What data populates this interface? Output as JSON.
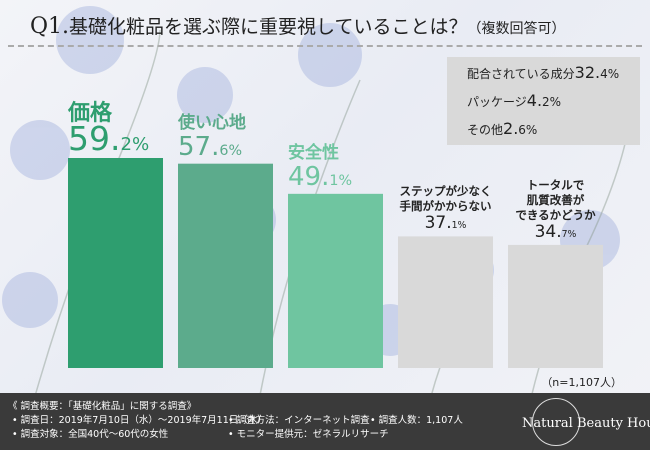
{
  "title": {
    "q": "Q1.",
    "main": "基礎化粧品を選ぶ際に重要視していることは？",
    "sub": "（複数回答可）"
  },
  "others": [
    {
      "label": "配合されている成分",
      "num": "32.",
      "frac": "4",
      "pct": "%"
    },
    {
      "label": "パッケージ",
      "num": "4.",
      "frac": "2",
      "pct": "%"
    },
    {
      "label": "その他",
      "num": "2.",
      "frac": "6",
      "pct": "%"
    }
  ],
  "chart_data": {
    "type": "bar",
    "categories": [
      "価格",
      "使い心地",
      "安全性",
      "ステップが少なく手間がかからない",
      "トータルで肌質改善ができるかどうか"
    ],
    "values": [
      59.2,
      57.6,
      49.1,
      37.1,
      34.7
    ],
    "unit": "%",
    "ylim": [
      0,
      65
    ],
    "grid": false,
    "colors": [
      "#2e9e6f",
      "#5cab8c",
      "#6fc5a0",
      "#d9d9d9",
      "#d9d9d9"
    ],
    "value_label_colors": [
      "#2e9e6f",
      "#5cab8c",
      "#6fc5a0",
      "#222222",
      "#222222"
    ],
    "label_lines": [
      [
        "価格"
      ],
      [
        "使い心地"
      ],
      [
        "安全性"
      ],
      [
        "ステップが少なく",
        "手間がかからない"
      ],
      [
        "トータルで",
        "肌質改善が",
        "できるかどうか"
      ]
    ]
  },
  "note": "（n=1,107人）",
  "footer": {
    "heading": "《 調査概要：「基礎化粧品」に関する調査》",
    "date": "• 調査日：2019年7月10日（水）〜2019年7月11日（木）",
    "target": "• 調査対象：全国40代〜60代の女性",
    "method": "• 調査方法：インターネット調査",
    "count": "• 調査人数：1,107人",
    "provider": "• モニター提供元：ゼネラルリサーチ"
  },
  "logo": {
    "text": "Natural Beauty House"
  }
}
